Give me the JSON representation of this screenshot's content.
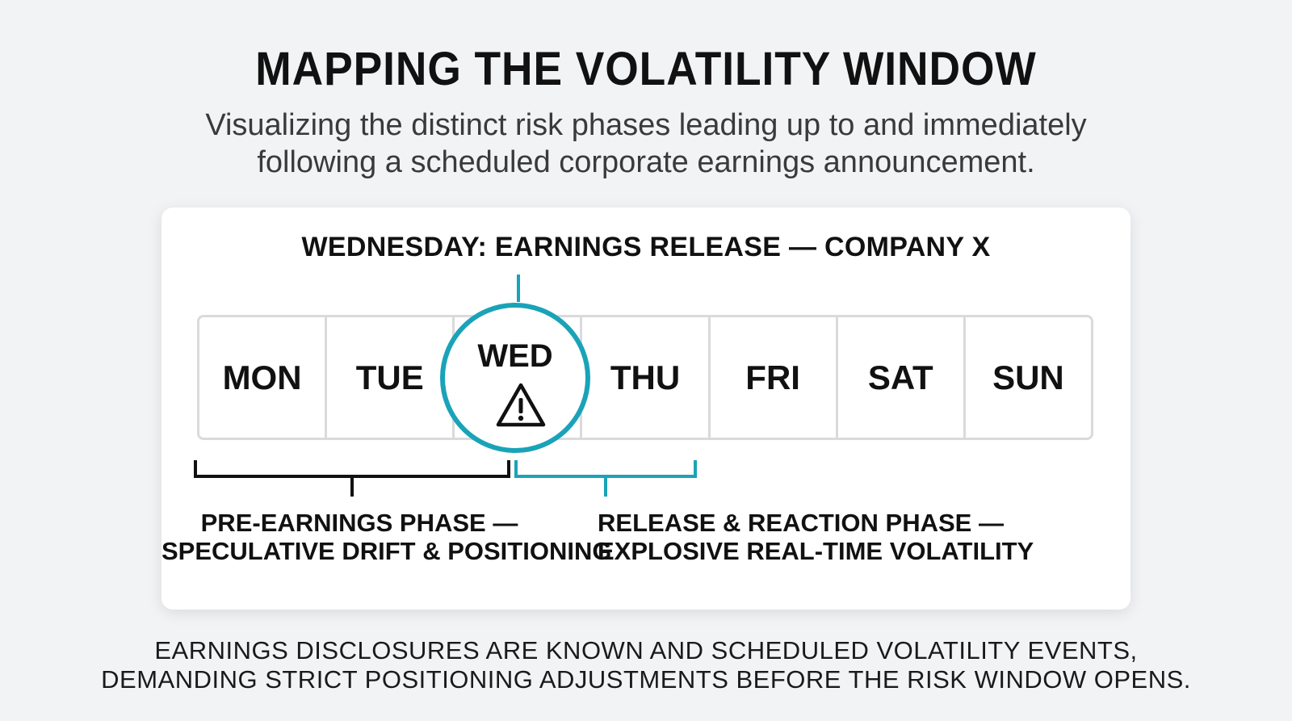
{
  "header": {
    "title": "MAPPING THE VOLATILITY WINDOW",
    "subtitle_line1": "Visualizing the distinct risk phases leading up to and immediately",
    "subtitle_line2": "following a scheduled corporate earnings announcement."
  },
  "diagram": {
    "event_title": "WEDNESDAY: EARNINGS RELEASE — COMPANY X",
    "days": [
      "MON",
      "TUE",
      "WED",
      "THU",
      "FRI",
      "SAT",
      "SUN"
    ],
    "highlight_day": "WED",
    "highlight_icon": "warning-triangle-icon",
    "accent_color": "#1aa3b8",
    "phases": {
      "pre": {
        "line1": "PRE-EARNINGS PHASE —",
        "line2": "SPECULATIVE DRIFT & POSITIONING",
        "color": "#111111"
      },
      "release": {
        "line1": "RELEASE & REACTION PHASE —",
        "line2": "EXPLOSIVE REAL-TIME VOLATILITY",
        "color": "#1aa3b8"
      }
    }
  },
  "footer": {
    "line1": "EARNINGS DISCLOSURES ARE KNOWN AND SCHEDULED VOLATILITY EVENTS,",
    "line2": "DEMANDING STRICT POSITIONING ADJUSTMENTS BEFORE THE RISK WINDOW OPENS."
  }
}
